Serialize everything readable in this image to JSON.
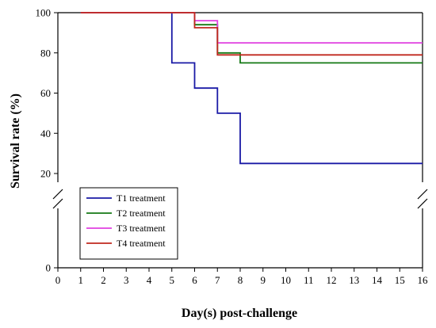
{
  "chart_data": {
    "type": "line",
    "step": true,
    "xlabel": "Day(s) post-challenge",
    "ylabel": "Survival rate (%)",
    "xlim": [
      0,
      16
    ],
    "x_ticks": [
      0,
      1,
      2,
      3,
      4,
      5,
      6,
      7,
      8,
      9,
      10,
      11,
      12,
      13,
      14,
      15,
      16
    ],
    "y_ticks_upper": [
      20,
      40,
      60,
      80,
      100
    ],
    "y_ticks_lower": [
      0
    ],
    "y_axis_break": true,
    "upper_ylim": [
      15,
      100
    ],
    "grid": false,
    "legend_position": "lower-left",
    "series": [
      {
        "name": "T1 treatment",
        "color": "#1a1aa6",
        "points": [
          [
            1,
            100
          ],
          [
            5,
            100
          ],
          [
            5,
            75
          ],
          [
            6,
            75
          ],
          [
            6,
            62.5
          ],
          [
            7,
            62.5
          ],
          [
            7,
            50
          ],
          [
            8,
            50
          ],
          [
            8,
            25
          ],
          [
            16,
            25
          ]
        ]
      },
      {
        "name": "T2 treatment",
        "color": "#147814",
        "points": [
          [
            1,
            100
          ],
          [
            6,
            100
          ],
          [
            6,
            94
          ],
          [
            7,
            94
          ],
          [
            7,
            80
          ],
          [
            8,
            80
          ],
          [
            8,
            75
          ],
          [
            16,
            75
          ]
        ]
      },
      {
        "name": "T3 treatment",
        "color": "#e040e0",
        "points": [
          [
            1,
            100
          ],
          [
            6,
            100
          ],
          [
            6,
            96
          ],
          [
            7,
            96
          ],
          [
            7,
            85
          ],
          [
            16,
            85
          ]
        ]
      },
      {
        "name": "T4 treatment",
        "color": "#c0281e",
        "points": [
          [
            1,
            100
          ],
          [
            6,
            100
          ],
          [
            6,
            92.5
          ],
          [
            7,
            92.5
          ],
          [
            7,
            79
          ],
          [
            16,
            79
          ]
        ]
      }
    ]
  }
}
